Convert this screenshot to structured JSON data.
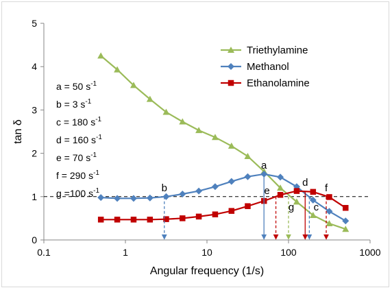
{
  "chart_data": {
    "type": "line",
    "xlabel": "Angular frequency (1/s)",
    "ylabel": "tan δ",
    "xscale": "log",
    "xlim": [
      0.1,
      1000
    ],
    "ylim": [
      0,
      5
    ],
    "xticks": [
      0.1,
      1,
      10,
      100,
      1000
    ],
    "xtick_labels": [
      "0.1",
      "1",
      "10",
      "100",
      "1000"
    ],
    "yticks": [
      0,
      1,
      2,
      3,
      4,
      5
    ],
    "ytick_labels": [
      "0",
      "1",
      "2",
      "3",
      "4",
      "5"
    ],
    "grid": false,
    "legend_position": "top-right",
    "reference_line": {
      "y": 1,
      "style": "dashed",
      "color": "#000000"
    },
    "series": [
      {
        "name": "Triethylamine",
        "color": "#9bbb59",
        "marker": "triangle",
        "x": [
          0.5,
          0.794,
          1.26,
          2,
          3.16,
          5.01,
          7.94,
          12.6,
          20,
          31.6,
          50.1,
          79.4,
          126,
          200,
          316,
          501
        ],
        "y": [
          4.25,
          3.93,
          3.57,
          3.25,
          2.95,
          2.73,
          2.53,
          2.37,
          2.17,
          1.93,
          1.58,
          1.2,
          0.88,
          0.57,
          0.38,
          0.25
        ]
      },
      {
        "name": "Methanol",
        "color": "#4f81bd",
        "marker": "diamond",
        "x": [
          0.5,
          0.794,
          1.26,
          2,
          3.16,
          5.01,
          7.94,
          12.6,
          20,
          31.6,
          50.1,
          79.4,
          126,
          200,
          316,
          501
        ],
        "y": [
          0.98,
          0.96,
          0.96,
          0.97,
          1.0,
          1.06,
          1.13,
          1.23,
          1.35,
          1.46,
          1.52,
          1.45,
          1.23,
          0.92,
          0.66,
          0.44
        ]
      },
      {
        "name": "Ethanolamine",
        "color": "#c00000",
        "marker": "square",
        "x": [
          0.5,
          0.794,
          1.26,
          2,
          3.16,
          5.01,
          7.94,
          12.6,
          20,
          31.6,
          50.1,
          79.4,
          126,
          200,
          316,
          501
        ],
        "y": [
          0.47,
          0.47,
          0.47,
          0.47,
          0.48,
          0.5,
          0.54,
          0.59,
          0.67,
          0.78,
          0.9,
          1.04,
          1.13,
          1.11,
          0.99,
          0.74
        ]
      }
    ],
    "annotations": [
      {
        "label": "a",
        "text": "a = 50 s",
        "sup": "-1",
        "x": 50,
        "y": 1.52,
        "arrow_color": "#4f81bd",
        "arrow_style": "solid",
        "letter_pos": "above"
      },
      {
        "label": "b",
        "text": "b = 3 s",
        "sup": "-1",
        "x": 3,
        "y": 1.0,
        "arrow_color": "#4f81bd",
        "arrow_style": "dashed",
        "letter_pos": "above"
      },
      {
        "label": "c",
        "text": "c = 180 s",
        "sup": "-1",
        "x": 180,
        "y": 1.0,
        "arrow_color": "#4f81bd",
        "arrow_style": "dashed",
        "letter_pos": "right-below"
      },
      {
        "label": "d",
        "text": "d = 160 s",
        "sup": "-1",
        "x": 160,
        "y": 1.12,
        "arrow_color": "#c00000",
        "arrow_style": "solid",
        "letter_pos": "above"
      },
      {
        "label": "e",
        "text": "e = 70 s",
        "sup": "-1",
        "x": 70,
        "y": 1.0,
        "arrow_color": "#c00000",
        "arrow_style": "dashed",
        "letter_pos": "left"
      },
      {
        "label": "f",
        "text": "f = 290 s",
        "sup": "-1",
        "x": 290,
        "y": 1.0,
        "arrow_color": "#c00000",
        "arrow_style": "dashed",
        "letter_pos": "above"
      },
      {
        "label": "g",
        "text": "g =100 s",
        "sup": "-1",
        "x": 100,
        "y": 1.0,
        "arrow_color": "#9bbb59",
        "arrow_style": "dashed",
        "letter_pos": "below"
      }
    ]
  }
}
